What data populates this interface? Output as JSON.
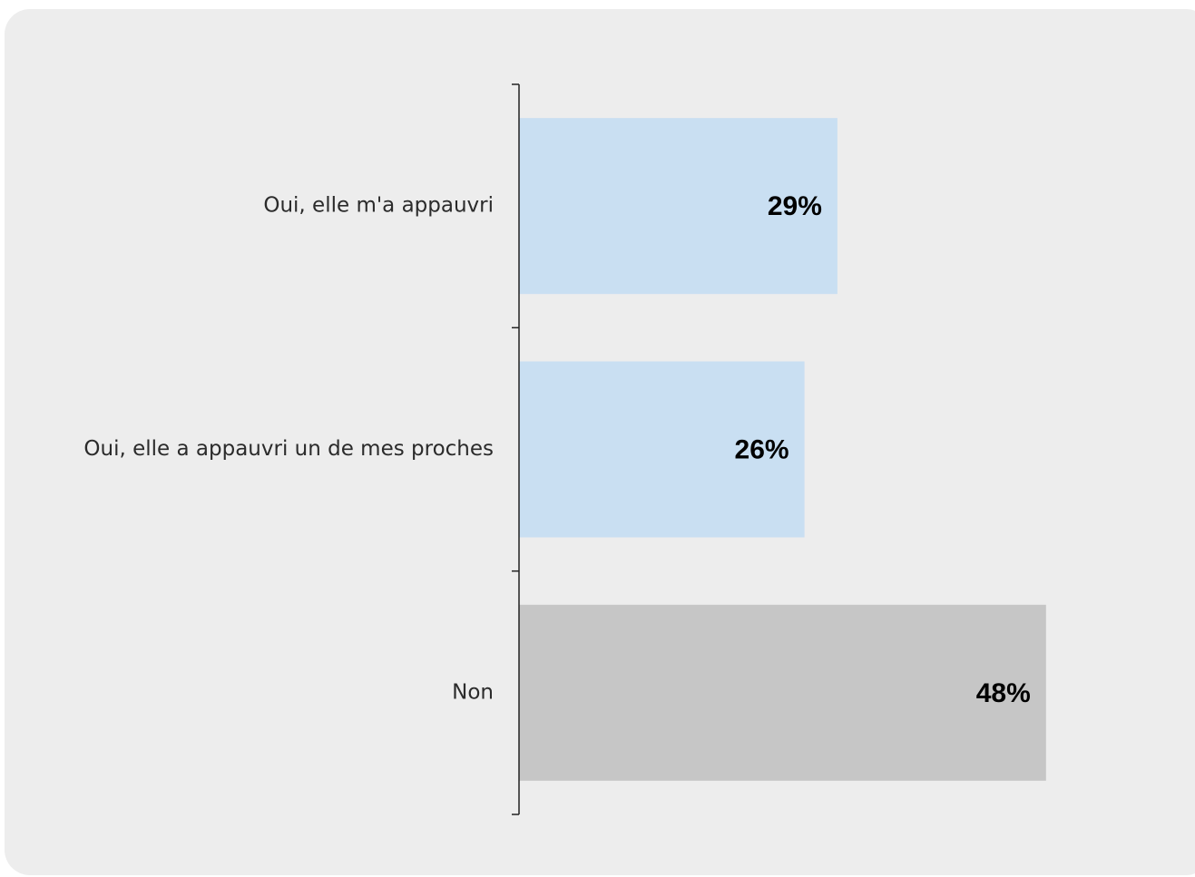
{
  "chart_data": {
    "type": "bar",
    "orientation": "horizontal",
    "categories": [
      "Oui, elle m'a appauvri",
      "Oui, elle a appauvri un de mes proches",
      "Non"
    ],
    "values": [
      29,
      26,
      48
    ],
    "value_labels": [
      "29%",
      "26%",
      "48%"
    ],
    "colors": [
      "#c9dff2",
      "#c9dff2",
      "#c6c6c6"
    ],
    "xlim": [
      0,
      50
    ],
    "grid": false,
    "legend": "none"
  }
}
